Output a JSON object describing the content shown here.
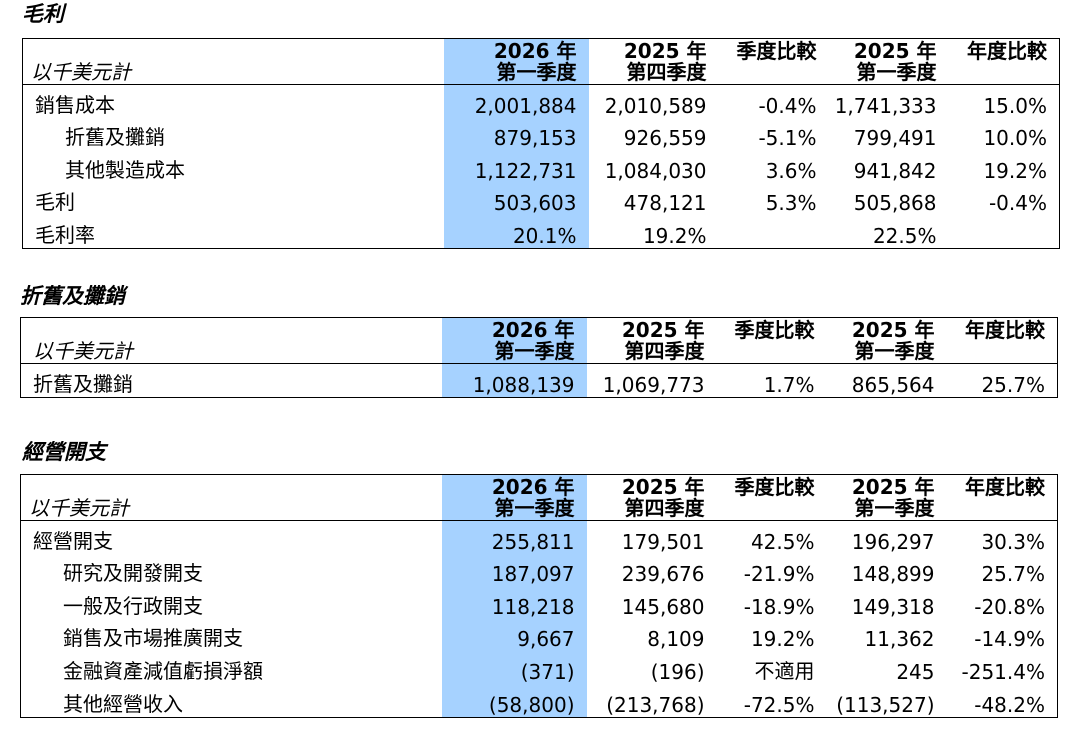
{
  "sections": {
    "gross": {
      "title": "毛利",
      "unit": "以千美元計",
      "headers": {
        "c1_year": "2026 年",
        "c1_q": "第一季度",
        "c2_year": "2025 年",
        "c2_q": "第四季度",
        "qoq": "季度比較",
        "c3_year": "2025 年",
        "c3_q": "第一季度",
        "yoy": "年度比較"
      },
      "rows": [
        {
          "label": "銷售成本",
          "v1": "2,001,884",
          "v2": "2,010,589",
          "qoq": "-0.4%",
          "v3": "1,741,333",
          "yoy": "15.0%"
        },
        {
          "label": "折舊及攤銷",
          "v1": "879,153",
          "v2": "926,559",
          "qoq": "-5.1%",
          "v3": "799,491",
          "yoy": "10.0%"
        },
        {
          "label": "其他製造成本",
          "v1": "1,122,731",
          "v2": "1,084,030",
          "qoq": "3.6%",
          "v3": "941,842",
          "yoy": "19.2%"
        },
        {
          "label": "毛利",
          "v1": "503,603",
          "v2": "478,121",
          "qoq": "5.3%",
          "v3": "505,868",
          "yoy": "-0.4%"
        },
        {
          "label": "毛利率",
          "v1": "20.1%",
          "v2": "19.2%",
          "qoq": "",
          "v3": "22.5%",
          "yoy": ""
        }
      ]
    },
    "depreciation": {
      "title": "折舊及攤銷",
      "unit": "以千美元計",
      "headers": {
        "c1_year": "2026 年",
        "c1_q": "第一季度",
        "c2_year": "2025 年",
        "c2_q": "第四季度",
        "qoq": "季度比較",
        "c3_year": "2025 年",
        "c3_q": "第一季度",
        "yoy": "年度比較"
      },
      "rows": [
        {
          "label": "折舊及攤銷",
          "v1": "1,088,139",
          "v2": "1,069,773",
          "qoq": "1.7%",
          "v3": "865,564",
          "yoy": "25.7%"
        }
      ]
    },
    "opex": {
      "title": "經營開支",
      "unit": "以千美元計",
      "headers": {
        "c1_year": "2026 年",
        "c1_q": "第一季度",
        "c2_year": "2025 年",
        "c2_q": "第四季度",
        "qoq": "季度比較",
        "c3_year": "2025 年",
        "c3_q": "第一季度",
        "yoy": "年度比較"
      },
      "rows": [
        {
          "label": "經營開支",
          "v1": "255,811",
          "v2": "179,501",
          "qoq": "42.5%",
          "v3": "196,297",
          "yoy": "30.3%"
        },
        {
          "label": "研究及開發開支",
          "v1": "187,097",
          "v2": "239,676",
          "qoq": "-21.9%",
          "v3": "148,899",
          "yoy": "25.7%"
        },
        {
          "label": "一般及行政開支",
          "v1": "118,218",
          "v2": "145,680",
          "qoq": "-18.9%",
          "v3": "149,318",
          "yoy": "-20.8%"
        },
        {
          "label": "銷售及市場推廣開支",
          "v1": "9,667",
          "v2": "8,109",
          "qoq": "19.2%",
          "v3": "11,362",
          "yoy": "-14.9%"
        },
        {
          "label": "金融資產減值虧損淨額",
          "v1": "(371)",
          "v2": "(196)",
          "qoq": "不適用",
          "v3": "245",
          "yoy": "-251.4%"
        },
        {
          "label": "其他經營收入",
          "v1": "(58,800)",
          "v2": "(213,768)",
          "qoq": "-72.5%",
          "v3": "(113,527)",
          "yoy": "-48.2%"
        }
      ]
    }
  }
}
